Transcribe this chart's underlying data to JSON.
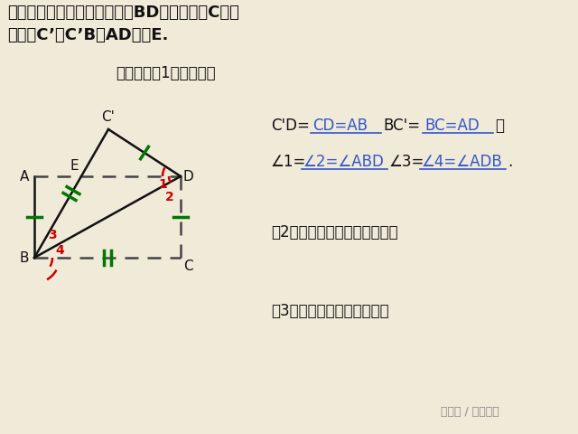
{
  "bg_color": "#f0ead8",
  "title_line1": "折法一：将矩形纸片沿对角线BD折叠，记点C的对",
  "title_line2": "应点为C’，C’B交AD于点E.",
  "subtitle": "说一说：（1）折叠后：",
  "q3_text": "（2）图中有哪些全等三角形？",
  "q4_text": "（3）重叠部分是什么图形？",
  "watermark": "头条号 / 第一课室",
  "ans_color": "#3355cc",
  "text_color": "#111111",
  "line_color": "#111111",
  "red_color": "#cc0000",
  "green_color": "#007700",
  "dashed_color": "#444444"
}
